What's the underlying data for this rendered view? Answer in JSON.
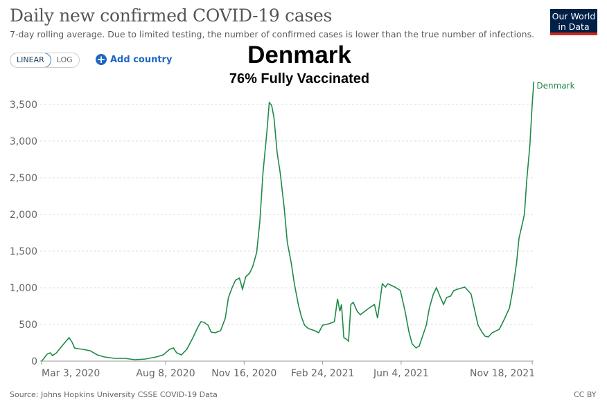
{
  "header": {
    "title": "Daily new confirmed COVID-19 cases",
    "subtitle": "7-day rolling average. Due to limited testing, the number of confirmed cases is lower than the true number of infections.",
    "logo": "Our World in Data"
  },
  "controls": {
    "linear": "LINEAR",
    "log": "LOG",
    "add_country": "Add country"
  },
  "overlay": {
    "country": "Denmark",
    "vaccinated": "76% Fully Vaccinated"
  },
  "footer": {
    "source": "Source: Johns Hopkins University CSSE COVID-19 Data",
    "license": "CC BY"
  },
  "colors": {
    "line": "#1e8a47",
    "logo_bg": "#002147",
    "logo_bar": "#ce261e",
    "accent": "#2067c4"
  },
  "chart_data": {
    "type": "line",
    "title": "Daily new confirmed COVID-19 cases",
    "xlabel": "",
    "ylabel": "",
    "x_unit": "days since Mar 3, 2020",
    "ylim": [
      0,
      3800
    ],
    "grid": true,
    "yticks": [
      0,
      500,
      1000,
      1500,
      2000,
      2500,
      3000,
      3500
    ],
    "ytick_labels": [
      "0",
      "500",
      "1,000",
      "1,500",
      "2,000",
      "2,500",
      "3,000",
      "3,500"
    ],
    "xticks": [
      {
        "day": 0,
        "label": "Mar 3, 2020"
      },
      {
        "day": 158,
        "label": "Aug 8, 2020"
      },
      {
        "day": 258,
        "label": "Nov 16, 2020"
      },
      {
        "day": 358,
        "label": "Feb 24, 2021"
      },
      {
        "day": 458,
        "label": "Jun 4, 2021"
      },
      {
        "day": 625,
        "label": "Nov 18, 2021"
      }
    ],
    "series": [
      {
        "name": "Denmark",
        "points": [
          [
            0,
            0
          ],
          [
            3,
            38
          ],
          [
            7,
            94
          ],
          [
            11,
            113
          ],
          [
            14,
            75
          ],
          [
            19,
            113
          ],
          [
            26,
            207
          ],
          [
            32,
            283
          ],
          [
            35,
            320
          ],
          [
            39,
            255
          ],
          [
            42,
            179
          ],
          [
            46,
            170
          ],
          [
            53,
            160
          ],
          [
            62,
            141
          ],
          [
            71,
            85
          ],
          [
            80,
            57
          ],
          [
            93,
            38
          ],
          [
            106,
            38
          ],
          [
            119,
            19
          ],
          [
            132,
            28
          ],
          [
            146,
            57
          ],
          [
            155,
            85
          ],
          [
            163,
            160
          ],
          [
            168,
            179
          ],
          [
            172,
            113
          ],
          [
            178,
            85
          ],
          [
            185,
            160
          ],
          [
            192,
            302
          ],
          [
            199,
            462
          ],
          [
            203,
            538
          ],
          [
            207,
            528
          ],
          [
            212,
            490
          ],
          [
            216,
            396
          ],
          [
            221,
            387
          ],
          [
            228,
            415
          ],
          [
            234,
            585
          ],
          [
            238,
            868
          ],
          [
            243,
            1009
          ],
          [
            247,
            1103
          ],
          [
            252,
            1132
          ],
          [
            256,
            981
          ],
          [
            260,
            1150
          ],
          [
            265,
            1198
          ],
          [
            269,
            1292
          ],
          [
            274,
            1481
          ],
          [
            278,
            1905
          ],
          [
            282,
            2565
          ],
          [
            287,
            3130
          ],
          [
            290,
            3526
          ],
          [
            293,
            3490
          ],
          [
            296,
            3319
          ],
          [
            300,
            2848
          ],
          [
            304,
            2565
          ],
          [
            309,
            2094
          ],
          [
            313,
            1622
          ],
          [
            318,
            1339
          ],
          [
            322,
            1056
          ],
          [
            327,
            773
          ],
          [
            331,
            603
          ],
          [
            335,
            490
          ],
          [
            340,
            443
          ],
          [
            348,
            415
          ],
          [
            353,
            387
          ],
          [
            358,
            490
          ],
          [
            366,
            509
          ],
          [
            373,
            538
          ],
          [
            377,
            849
          ],
          [
            380,
            679
          ],
          [
            382,
            773
          ],
          [
            385,
            321
          ],
          [
            388,
            302
          ],
          [
            391,
            273
          ],
          [
            394,
            773
          ],
          [
            397,
            801
          ],
          [
            402,
            679
          ],
          [
            406,
            632
          ],
          [
            415,
            707
          ],
          [
            424,
            773
          ],
          [
            428,
            585
          ],
          [
            431,
            820
          ],
          [
            434,
            1056
          ],
          [
            438,
            1009
          ],
          [
            441,
            1056
          ],
          [
            450,
            1009
          ],
          [
            457,
            962
          ],
          [
            463,
            679
          ],
          [
            468,
            396
          ],
          [
            472,
            236
          ],
          [
            477,
            179
          ],
          [
            481,
            207
          ],
          [
            485,
            330
          ],
          [
            490,
            490
          ],
          [
            494,
            726
          ],
          [
            499,
            915
          ],
          [
            503,
            1000
          ],
          [
            508,
            868
          ],
          [
            512,
            773
          ],
          [
            516,
            868
          ],
          [
            521,
            887
          ],
          [
            525,
            962
          ],
          [
            530,
            981
          ],
          [
            539,
            1009
          ],
          [
            547,
            915
          ],
          [
            552,
            679
          ],
          [
            556,
            490
          ],
          [
            561,
            396
          ],
          [
            565,
            340
          ],
          [
            569,
            330
          ],
          [
            574,
            387
          ],
          [
            583,
            434
          ],
          [
            590,
            585
          ],
          [
            596,
            726
          ],
          [
            600,
            962
          ],
          [
            605,
            1339
          ],
          [
            608,
            1670
          ],
          [
            611,
            1811
          ],
          [
            615,
            2000
          ],
          [
            618,
            2471
          ],
          [
            622,
            2943
          ],
          [
            625,
            3509
          ],
          [
            627,
            3811
          ]
        ]
      }
    ]
  }
}
